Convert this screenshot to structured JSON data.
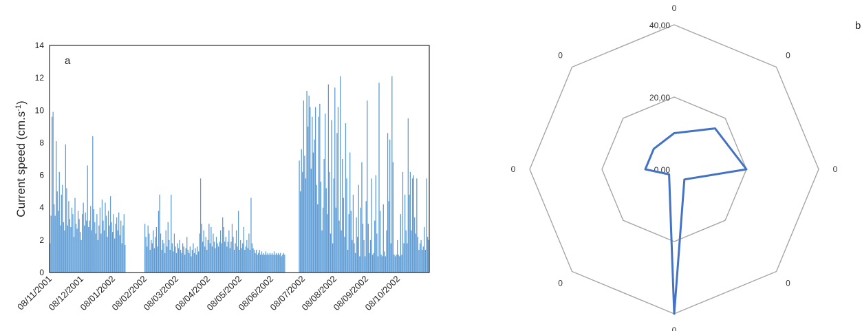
{
  "chart_data": [
    {
      "type": "bar",
      "panel_label": "a",
      "xlabel": "",
      "ylabel": "Current speed (cm.s",
      "ylabel_sup": "-1",
      "ylabel_close": ")",
      "ylim": [
        0,
        14
      ],
      "yticks": [
        "0",
        "2",
        "4",
        "6",
        "8",
        "10",
        "12",
        "14"
      ],
      "x_tick_labels": [
        "08/11/2001",
        "08/12/2001",
        "08/01/2002",
        "08/02/2002",
        "08/03/2002",
        "08/04/2002",
        "08/05/2002",
        "08/06/2002",
        "08/07/2002",
        "08/08/2002",
        "08/09/2002",
        "08/10/2002"
      ],
      "x_start": "2001-11-08",
      "x_end": "2002-11-07",
      "gaps": [
        [
          "2002-01-20",
          "2002-02-07"
        ],
        [
          "2002-06-22",
          "2002-07-05"
        ]
      ],
      "segments": [
        {
          "from": "2001-11-08",
          "to": "2001-12-08",
          "values": [
            1.8,
            3.5,
            9.6,
            9.9,
            4.2,
            3.5,
            8.1,
            5.0,
            3.8,
            6.2,
            2.9,
            4.8,
            5.4,
            3.1,
            2.6,
            7.9,
            5.2,
            2.9,
            4.4,
            3.3,
            2.8,
            4.0,
            3.6,
            2.2,
            4.6,
            3.0,
            2.7,
            3.8,
            3.3,
            2.5
          ]
        },
        {
          "from": "2001-12-08",
          "to": "2002-01-20",
          "values": [
            2.0,
            3.6,
            4.3,
            2.9,
            3.7,
            3.2,
            6.6,
            2.8,
            3.2,
            4.1,
            2.6,
            8.4,
            3.9,
            3.1,
            2.4,
            3.6,
            2.0,
            2.9,
            4.0,
            2.4,
            4.5,
            3.2,
            2.6,
            4.3,
            3.5,
            2.2,
            3.8,
            2.9,
            4.7,
            3.1,
            2.5,
            3.6,
            2.1,
            3.0,
            3.4,
            2.6,
            3.7,
            2.3,
            3.2,
            1.8,
            2.9,
            3.6,
            1.7
          ]
        },
        {
          "from": "2002-02-07",
          "to": "2002-06-22",
          "values": [
            3.0,
            2.2,
            1.6,
            2.9,
            2.4,
            1.4,
            2.0,
            1.8,
            2.6,
            1.5,
            2.2,
            2.8,
            1.6,
            3.8,
            4.8,
            2.4,
            1.4,
            2.0,
            1.8,
            1.2,
            2.6,
            1.6,
            3.1,
            2.0,
            1.4,
            4.8,
            1.8,
            1.3,
            2.4,
            1.6,
            1.2,
            1.8,
            1.5,
            2.0,
            1.4,
            1.2,
            1.8,
            1.6,
            1.1,
            1.5,
            2.2,
            1.4,
            1.2,
            1.6,
            1.0,
            1.4,
            1.8,
            1.2,
            1.5,
            1.1,
            1.6,
            1.3,
            2.4,
            5.8,
            3.0,
            1.9,
            2.6,
            1.6,
            2.2,
            1.4,
            2.0,
            3.0,
            1.8,
            2.8,
            1.6,
            2.4,
            1.9,
            1.5,
            2.2,
            1.8,
            1.6,
            1.9,
            2.6,
            1.8,
            3.4,
            2.8,
            1.9,
            2.2,
            1.6,
            1.9,
            2.6,
            1.5,
            1.9,
            3.0,
            2.2,
            1.4,
            1.8,
            2.6,
            1.6,
            3.8,
            1.4,
            2.0,
            1.5,
            1.8,
            2.8,
            1.4,
            1.6,
            2.0,
            1.5,
            2.4,
            1.4,
            4.6,
            1.8,
            1.5,
            1.4,
            1.2,
            1.4,
            1.1,
            1.2,
            1.4,
            1.1,
            1.3,
            1.1,
            1.2,
            1.1,
            1.3,
            1.1,
            1.2,
            1.1,
            1.2,
            1.1,
            1.2,
            1.1,
            1.3,
            1.1,
            1.2,
            1.1,
            1.2,
            1.1,
            1.2,
            1.0,
            1.1,
            1.2,
            1.1
          ]
        },
        {
          "from": "2002-07-05",
          "to": "2002-11-07",
          "values": [
            6.9,
            5.0,
            7.6,
            6.2,
            10.6,
            7.2,
            5.8,
            11.2,
            9.0,
            10.9,
            10.2,
            6.4,
            9.6,
            7.4,
            8.2,
            10.2,
            5.4,
            4.2,
            9.6,
            10.4,
            5.6,
            2.6,
            4.0,
            7.0,
            9.8,
            5.2,
            3.6,
            11.6,
            6.2,
            2.4,
            9.4,
            1.8,
            5.8,
            11.4,
            4.0,
            8.6,
            10.2,
            3.2,
            12.1,
            2.6,
            7.0,
            4.6,
            2.2,
            9.2,
            5.8,
            1.4,
            3.6,
            7.4,
            3.8,
            2.0,
            4.8,
            1.8,
            1.2,
            3.4,
            2.2,
            5.4,
            1.0,
            4.0,
            6.8,
            3.0,
            2.0,
            1.0,
            4.4,
            10.6,
            3.0,
            1.2,
            2.0,
            5.8,
            1.1,
            1.2,
            3.2,
            6.0,
            2.4,
            1.0,
            11.7,
            3.8,
            1.1,
            1.0,
            4.2,
            1.3,
            1.0,
            2.6,
            8.6,
            4.4,
            8.2,
            1.8,
            12.1,
            6.8,
            1.1,
            1.0,
            1.1,
            2.0,
            1.1,
            1.0,
            3.6,
            1.1,
            6.2,
            1.8,
            4.8,
            2.6,
            1.8,
            9.5,
            4.8,
            6.2,
            2.6,
            5.8,
            6.0,
            3.4,
            2.4,
            5.8,
            2.2,
            1.4,
            1.8,
            2.0,
            1.4,
            1.6,
            2.8,
            1.4,
            5.8,
            2.2,
            2.0
          ]
        }
      ]
    },
    {
      "type": "radar",
      "panel_label": "b",
      "rlim": [
        0,
        40
      ],
      "rticks": [
        "0,00",
        "20,00",
        "40,00"
      ],
      "rtick_values": [
        0,
        20,
        40
      ],
      "category_labels": [
        "0",
        "0",
        "0",
        "0",
        "0",
        "0",
        "0",
        "0"
      ],
      "values": [
        10,
        16,
        20,
        4,
        40,
        2,
        8,
        8
      ],
      "line_color": "#4472c4",
      "grid_color": "#a6a6a6"
    }
  ]
}
